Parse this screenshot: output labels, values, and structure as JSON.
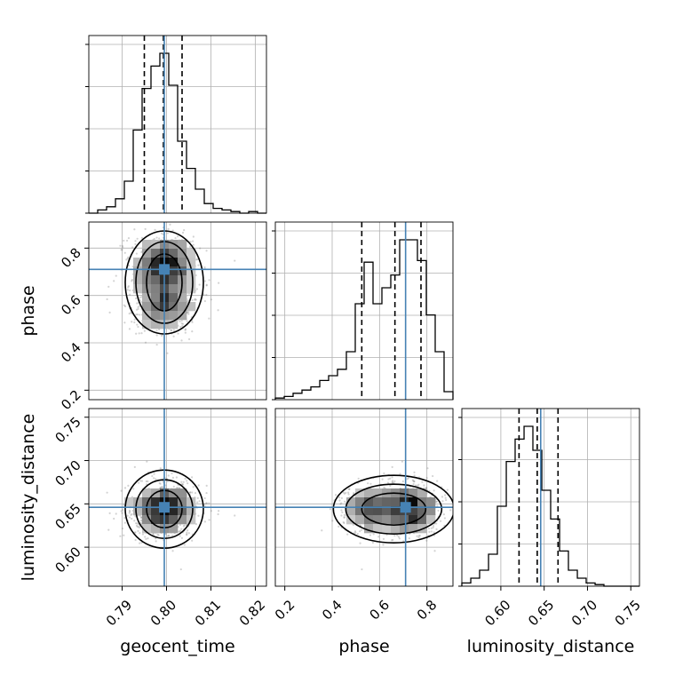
{
  "chart_data": {
    "type": "corner",
    "parameters": [
      "geocent_time",
      "phase",
      "luminosity_distance"
    ],
    "axis_labels": {
      "x": [
        "geocent_time",
        "phase",
        "luminosity_distance"
      ],
      "y": [
        "",
        "phase",
        "luminosity_distance"
      ]
    },
    "ranges": {
      "geocent_time": [
        0.7825,
        0.8225
      ],
      "phase": [
        0.16,
        0.91
      ],
      "luminosity_distance": [
        0.555,
        0.76
      ]
    },
    "ticks": {
      "geocent_time": [
        0.79,
        0.8,
        0.81,
        0.82
      ],
      "phase": [
        0.2,
        0.4,
        0.6,
        0.8
      ],
      "luminosity_distance": [
        0.6,
        0.65,
        0.7,
        0.75
      ]
    },
    "tick_labels": {
      "geocent_time": [
        "0.79",
        "0.80",
        "0.81",
        "0.82"
      ],
      "phase": [
        "0.2",
        "0.4",
        "0.6",
        "0.8"
      ],
      "luminosity_distance": [
        "0.60",
        "0.65",
        "0.70",
        "0.75"
      ],
      "luminosity_distance_x": [
        "0.60",
        "0.65",
        "0.70",
        "0.75"
      ]
    },
    "truths": {
      "geocent_time": 0.7995,
      "phase": 0.71,
      "luminosity_distance": 0.646
    },
    "quantiles": {
      "geocent_time": [
        0.795,
        0.7993,
        0.8035
      ],
      "phase": [
        0.525,
        0.665,
        0.775
      ],
      "luminosity_distance": [
        0.621,
        0.642,
        0.666
      ]
    },
    "histograms": {
      "geocent_time": {
        "edges": [
          0.7825,
          0.7845,
          0.7865,
          0.7885,
          0.7905,
          0.7925,
          0.7945,
          0.7965,
          0.7985,
          0.8005,
          0.8025,
          0.8045,
          0.8065,
          0.8085,
          0.8105,
          0.8125,
          0.8145,
          0.8165,
          0.8185,
          0.8205,
          0.8225
        ],
        "counts": [
          0.0,
          0.02,
          0.04,
          0.09,
          0.2,
          0.52,
          0.78,
          0.92,
          1.0,
          0.8,
          0.45,
          0.28,
          0.15,
          0.06,
          0.03,
          0.02,
          0.01,
          0.0,
          0.01,
          0.0
        ]
      },
      "phase": {
        "edges": [
          0.16,
          0.1975,
          0.235,
          0.2725,
          0.31,
          0.3475,
          0.385,
          0.4225,
          0.46,
          0.4975,
          0.535,
          0.5725,
          0.61,
          0.6475,
          0.685,
          0.7225,
          0.76,
          0.7975,
          0.835,
          0.8725,
          0.91
        ],
        "counts": [
          0.01,
          0.02,
          0.04,
          0.06,
          0.08,
          0.12,
          0.15,
          0.19,
          0.3,
          0.6,
          0.86,
          0.6,
          0.7,
          0.78,
          1.0,
          1.0,
          0.87,
          0.53,
          0.3,
          0.05
        ]
      },
      "luminosity_distance": {
        "edges": [
          0.555,
          0.5653,
          0.5755,
          0.5858,
          0.596,
          0.6063,
          0.6165,
          0.6268,
          0.637,
          0.6473,
          0.6575,
          0.6678,
          0.678,
          0.6883,
          0.6985,
          0.7088,
          0.719,
          0.7293,
          0.7395,
          0.7498,
          0.76
        ],
        "counts": [
          0.02,
          0.05,
          0.1,
          0.2,
          0.5,
          0.78,
          0.92,
          1.0,
          0.85,
          0.6,
          0.42,
          0.22,
          0.1,
          0.05,
          0.02,
          0.01,
          0.0,
          0.0,
          0.0,
          0.0
        ]
      }
    },
    "grid": true,
    "series_color": "#000000",
    "truth_color": "#4682b4",
    "scatter_color": "#808080"
  }
}
